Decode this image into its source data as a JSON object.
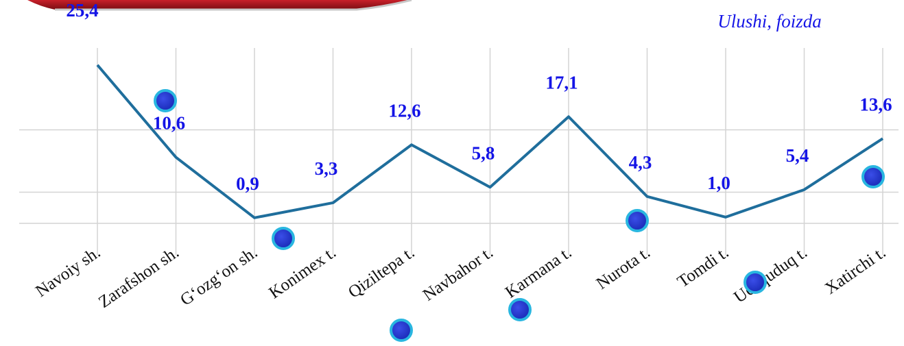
{
  "chart_data": {
    "type": "line",
    "title": "Ulushi, foizda",
    "categories": [
      "Navoiy sh.",
      "Zarafshon sh.",
      "G‘ozg‘on sh.",
      "Konimex t.",
      "Qiziltepa t.",
      "Navbahor t.",
      "Karmana t.",
      "Nurota t.",
      "Tomdi t.",
      "Uchquduq t.",
      "Xatirchi t."
    ],
    "series": [
      {
        "color": "#1f6e9c",
        "values": [
          25.4,
          10.6,
          0.9,
          3.3,
          12.6,
          5.8,
          17.1,
          4.3,
          1.0,
          5.4,
          13.6
        ],
        "value_labels": [
          "25,4",
          "10,6",
          "0,9",
          "3,3",
          "12,6",
          "5,8",
          "17,1",
          "4,3",
          "1,0",
          "5,4",
          "13,6"
        ]
      }
    ],
    "ylim": [
      0,
      30
    ],
    "yticks": [
      0,
      5,
      15
    ],
    "grid": true
  }
}
